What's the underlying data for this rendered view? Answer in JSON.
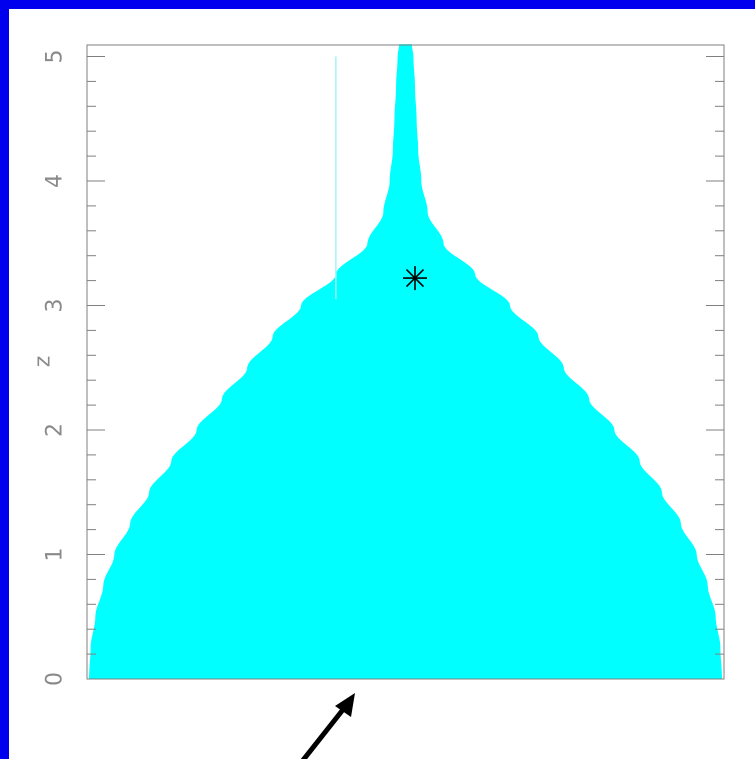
{
  "chart_data": {
    "type": "area",
    "title": "",
    "xlabel": "",
    "ylabel": "z",
    "ylim": [
      0,
      5.1
    ],
    "yticks": [
      "0",
      "1",
      "2",
      "3",
      "4",
      "5"
    ],
    "grid": false,
    "series": [
      {
        "kind": "symmetric-filled-profile",
        "color": "#00ffff",
        "z": [
          0,
          0.25,
          0.5,
          0.75,
          1.0,
          1.25,
          1.5,
          1.75,
          2.0,
          2.25,
          2.5,
          2.75,
          3.0,
          3.25,
          3.5,
          3.75,
          4.0,
          4.25,
          4.5,
          4.75,
          5.0,
          5.1
        ],
        "half_width": [
          1.0,
          0.995,
          0.98,
          0.955,
          0.92,
          0.87,
          0.81,
          0.74,
          0.66,
          0.58,
          0.5,
          0.42,
          0.33,
          0.22,
          0.12,
          0.07,
          0.05,
          0.04,
          0.035,
          0.03,
          0.025,
          0.02
        ]
      }
    ],
    "marker": {
      "symbol": "asterisk",
      "z": 3.22,
      "x": 0.03,
      "color": "#000000"
    },
    "faint_line": {
      "x": -0.22,
      "z_from": 3.05,
      "z_to": 5.0,
      "color": "#9ff6f6"
    }
  },
  "arrow": {
    "color": "#000000"
  }
}
